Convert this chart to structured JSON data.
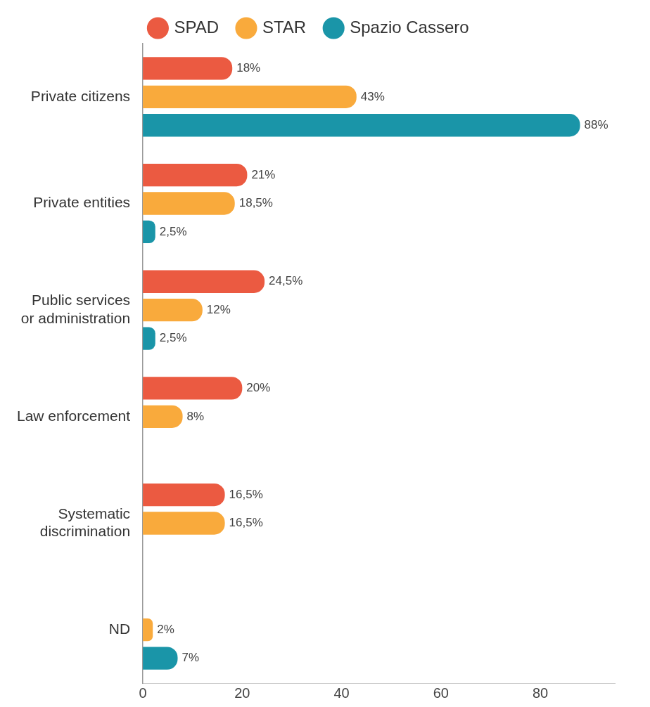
{
  "chart_data": {
    "type": "bar",
    "orientation": "horizontal",
    "categories": [
      "Private citizens",
      "Private entities",
      "Public services or administration",
      "Law enforcement",
      "Systematic discrimination",
      "ND"
    ],
    "series": [
      {
        "name": "SPAD",
        "color": "#eb5a41",
        "values": [
          18,
          21,
          24.5,
          20,
          16.5,
          null
        ],
        "value_labels": [
          "18%",
          "21%",
          "24,5%",
          "20%",
          "16,5%",
          null
        ]
      },
      {
        "name": "STAR",
        "color": "#f9aa3c",
        "values": [
          43,
          18.5,
          12,
          8,
          16.5,
          2
        ],
        "value_labels": [
          "43%",
          "18,5%",
          "12%",
          "8%",
          "16,5%",
          "2%"
        ]
      },
      {
        "name": "Spazio Cassero",
        "color": "#1a95a8",
        "values": [
          88,
          2.5,
          2.5,
          null,
          null,
          7
        ],
        "value_labels": [
          "88%",
          "2,5%",
          "2,5%",
          null,
          null,
          "7%"
        ]
      }
    ],
    "xlim": [
      0,
      95
    ],
    "xticks": [
      0,
      20,
      40,
      60,
      80
    ],
    "legend": "top"
  }
}
